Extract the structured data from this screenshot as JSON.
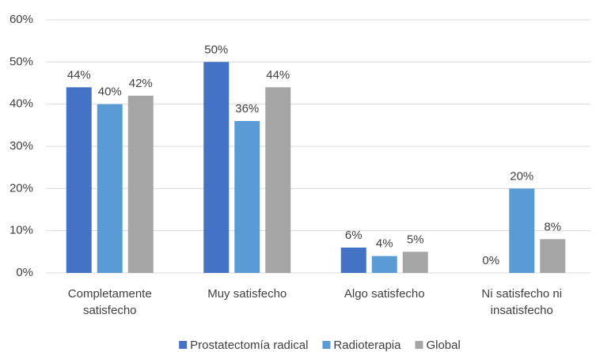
{
  "chart_data": {
    "type": "bar",
    "categories": [
      "Completamente satisfecho",
      "Muy satisfecho",
      "Algo satisfecho",
      "Ni satisfecho ni insatisfecho"
    ],
    "series": [
      {
        "name": "Prostatectomía radical",
        "color": "#4472c4",
        "values": [
          44,
          50,
          6,
          0
        ],
        "value_labels": [
          "44%",
          "50%",
          "6%",
          "0%"
        ]
      },
      {
        "name": "Radioterapia",
        "color": "#5b9bd5",
        "values": [
          40,
          36,
          4,
          20
        ],
        "value_labels": [
          "40%",
          "36%",
          "4%",
          "20%"
        ]
      },
      {
        "name": "Global",
        "color": "#a5a5a5",
        "values": [
          42,
          44,
          5,
          8
        ],
        "value_labels": [
          "42%",
          "44%",
          "5%",
          "8%"
        ]
      }
    ],
    "ylim": [
      0,
      60
    ],
    "yticks": [
      {
        "value": 0,
        "label": "0%"
      },
      {
        "value": 10,
        "label": "10%"
      },
      {
        "value": 20,
        "label": "20%"
      },
      {
        "value": 30,
        "label": "30%"
      },
      {
        "value": 40,
        "label": "40%"
      },
      {
        "value": 50,
        "label": "50%"
      },
      {
        "value": 60,
        "label": "60%"
      }
    ],
    "grid": true,
    "legend": "bottom"
  }
}
